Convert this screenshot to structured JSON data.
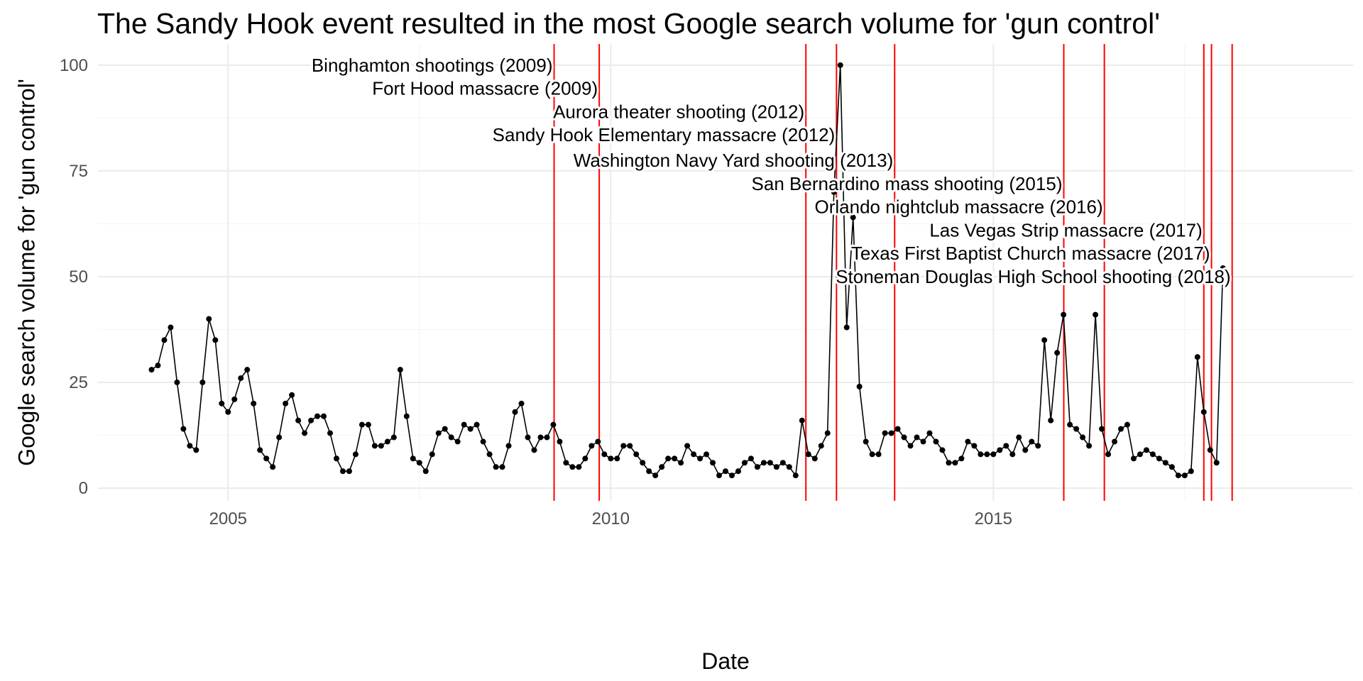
{
  "chart_data": {
    "type": "line",
    "title": "The Sandy Hook event resulted in the most Google search volume for 'gun control'",
    "xlabel": "Date",
    "ylabel": "Google search volume for 'gun control'",
    "xlim": [
      2003.3,
      2019.7
    ],
    "ylim": [
      -3,
      105
    ],
    "x_ticks": [
      2005,
      2010,
      2015
    ],
    "x_tick_labels": [
      "2005",
      "2010",
      "2015"
    ],
    "y_ticks": [
      0,
      25,
      50,
      75,
      100
    ],
    "y_tick_labels": [
      "0",
      "25",
      "50",
      "75",
      "100"
    ],
    "grid": true,
    "colors": {
      "line": "#000000",
      "points": "#000000",
      "events": "#ff0000",
      "grid_major": "#ebebeb",
      "grid_minor": "#f5f5f5"
    },
    "series": [
      {
        "x_start": "2004-01",
        "frequency": "monthly",
        "values": [
          28,
          29,
          35,
          38,
          25,
          14,
          10,
          9,
          25,
          40,
          35,
          20,
          18,
          21,
          26,
          28,
          20,
          9,
          7,
          5,
          12,
          20,
          22,
          16,
          13,
          16,
          17,
          17,
          13,
          7,
          4,
          4,
          8,
          15,
          15,
          10,
          10,
          11,
          12,
          28,
          17,
          7,
          6,
          4,
          8,
          13,
          14,
          12,
          11,
          15,
          14,
          15,
          11,
          8,
          5,
          5,
          10,
          18,
          20,
          12,
          9,
          12,
          12,
          15,
          11,
          6,
          5,
          5,
          7,
          10,
          11,
          8,
          7,
          7,
          10,
          10,
          8,
          6,
          4,
          3,
          5,
          7,
          7,
          6,
          10,
          8,
          7,
          8,
          6,
          3,
          4,
          3,
          4,
          6,
          7,
          5,
          6,
          6,
          5,
          6,
          5,
          3,
          16,
          8,
          7,
          10,
          13,
          70,
          100,
          38,
          64,
          24,
          11,
          8,
          8,
          13,
          13,
          14,
          12,
          10,
          12,
          11,
          13,
          11,
          9,
          6,
          6,
          7,
          11,
          10,
          8,
          8,
          8,
          9,
          10,
          8,
          12,
          9,
          11,
          10,
          35,
          16,
          32,
          41,
          15,
          14,
          12,
          10,
          41,
          14,
          8,
          11,
          14,
          15,
          7,
          8,
          9,
          8,
          7,
          6,
          5,
          3,
          3,
          4,
          31,
          18,
          9,
          6,
          52
        ]
      }
    ],
    "events": [
      {
        "label": "Binghamton shootings (2009)",
        "date": 2009.26,
        "label_y": 100
      },
      {
        "label": "Fort Hood massacre (2009)",
        "date": 2009.85,
        "label_y": 94.5
      },
      {
        "label": "Aurora theater shooting (2012)",
        "date": 2012.55,
        "label_y": 89
      },
      {
        "label": "Sandy Hook Elementary massacre (2012)",
        "date": 2012.95,
        "label_y": 83.5
      },
      {
        "label": "Washington Navy Yard shooting (2013)",
        "date": 2013.71,
        "label_y": 77.5
      },
      {
        "label": "San Bernardino mass shooting (2015)",
        "date": 2015.92,
        "label_y": 72
      },
      {
        "label": "Orlando nightclub massacre (2016)",
        "date": 2016.45,
        "label_y": 66.5
      },
      {
        "label": "Las Vegas Strip massacre (2017)",
        "date": 2017.75,
        "label_y": 61
      },
      {
        "label": "Texas First Baptist Church massacre (2017)",
        "date": 2017.85,
        "label_y": 55.5
      },
      {
        "label": "Stoneman Douglas High School shooting (2018)",
        "date": 2018.12,
        "label_y": 50
      }
    ]
  }
}
